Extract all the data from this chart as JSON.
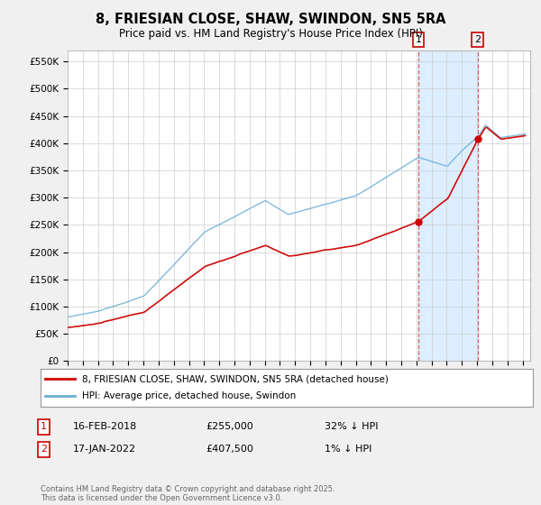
{
  "title": "8, FRIESIAN CLOSE, SHAW, SWINDON, SN5 5RA",
  "subtitle": "Price paid vs. HM Land Registry's House Price Index (HPI)",
  "ylabel_ticks": [
    "£0",
    "£50K",
    "£100K",
    "£150K",
    "£200K",
    "£250K",
    "£300K",
    "£350K",
    "£400K",
    "£450K",
    "£500K",
    "£550K"
  ],
  "ytick_values": [
    0,
    50000,
    100000,
    150000,
    200000,
    250000,
    300000,
    350000,
    400000,
    450000,
    500000,
    550000
  ],
  "ylim": [
    0,
    570000
  ],
  "xlim_start": 1995.0,
  "xlim_end": 2025.5,
  "legend_line1": "8, FRIESIAN CLOSE, SHAW, SWINDON, SN5 5RA (detached house)",
  "legend_line2": "HPI: Average price, detached house, Swindon",
  "sale1_date": "16-FEB-2018",
  "sale1_price": 255000,
  "sale1_label": "32% ↓ HPI",
  "sale2_date": "17-JAN-2022",
  "sale2_price": 407500,
  "sale2_label": "1% ↓ HPI",
  "footer": "Contains HM Land Registry data © Crown copyright and database right 2025.\nThis data is licensed under the Open Government Licence v3.0.",
  "hpi_color": "#6baed6",
  "price_color": "#cc0000",
  "bg_color": "#f0f0f0",
  "plot_bg_color": "#ffffff",
  "shade_color": "#ddeeff",
  "grid_color": "#cccccc",
  "sale1_x": 2018.12,
  "sale2_x": 2022.04
}
